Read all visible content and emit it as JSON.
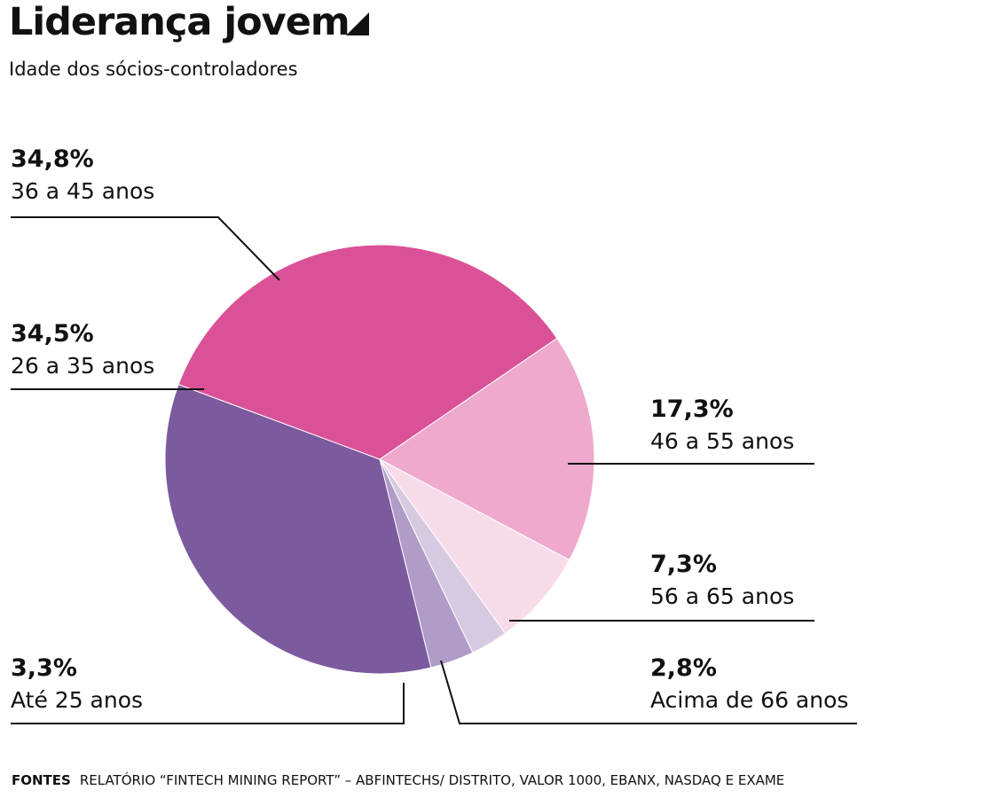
{
  "header": {
    "title": "Liderança jovem",
    "subtitle": "Idade dos sócios-controladores"
  },
  "chart_data": {
    "type": "pie",
    "title": "Liderança jovem",
    "subtitle": "Idade dos sócios-controladores",
    "slices": [
      {
        "label": "36 a 45 anos",
        "pct_label": "34,8%",
        "value": 34.8,
        "color": "#DA5197"
      },
      {
        "label": "46 a 55 anos",
        "pct_label": "17,3%",
        "value": 17.3,
        "color": "#EEA9CD"
      },
      {
        "label": "56 a 65 anos",
        "pct_label": "7,3%",
        "value": 7.3,
        "color": "#F8DBE9"
      },
      {
        "label": "Acima de 66 anos",
        "pct_label": "2,8%",
        "value": 2.8,
        "color": "#D6CAE1"
      },
      {
        "label": "Até 25 anos",
        "pct_label": "3,3%",
        "value": 3.3,
        "color": "#B19CC7"
      },
      {
        "label": "26 a 35 anos",
        "pct_label": "34,5%",
        "value": 34.5,
        "color": "#7B5A9E"
      }
    ]
  },
  "footer": {
    "source_label": "FONTES",
    "source_text": "RELATÓRIO “FINTECH MINING REPORT” – ABFINTECHS/ DISTRITO, VALOR 1000, EBANX, NASDAQ E EXAME"
  }
}
